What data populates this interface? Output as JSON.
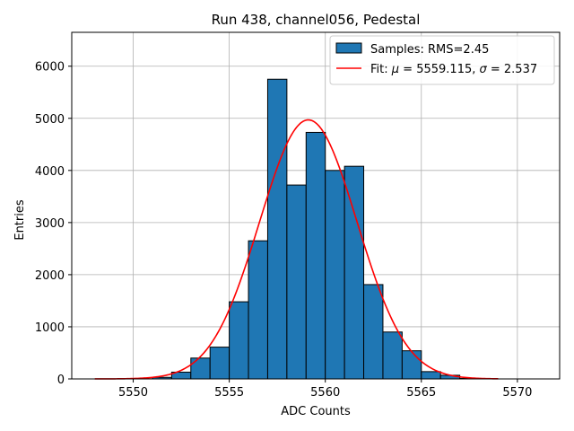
{
  "chart_data": {
    "type": "bar",
    "title": "Run 438, channel056, Pedestal",
    "xlabel": "ADC Counts",
    "ylabel": "Entries",
    "xlim": [
      5546.8,
      5572.2
    ],
    "ylim": [
      0,
      6650
    ],
    "xticks": [
      5550,
      5555,
      5560,
      5565,
      5570
    ],
    "yticks": [
      0,
      1000,
      2000,
      3000,
      4000,
      5000,
      6000
    ],
    "grid": true,
    "legend_position": "top-right",
    "histogram": {
      "name": "Samples: RMS=2.45",
      "color": "#1f77b4",
      "bins": [
        {
          "x0": 5551,
          "x1": 5552,
          "count": 30
        },
        {
          "x0": 5552,
          "x1": 5553,
          "count": 130
        },
        {
          "x0": 5553,
          "x1": 5554,
          "count": 400
        },
        {
          "x0": 5554,
          "x1": 5555,
          "count": 610
        },
        {
          "x0": 5555,
          "x1": 5556,
          "count": 1480
        },
        {
          "x0": 5556,
          "x1": 5557,
          "count": 2650
        },
        {
          "x0": 5557,
          "x1": 5558,
          "count": 5750
        },
        {
          "x0": 5558,
          "x1": 5559,
          "count": 3720
        },
        {
          "x0": 5559,
          "x1": 5560,
          "count": 4730
        },
        {
          "x0": 5560,
          "x1": 5561,
          "count": 4000
        },
        {
          "x0": 5561,
          "x1": 5562,
          "count": 4080
        },
        {
          "x0": 5562,
          "x1": 5563,
          "count": 1810
        },
        {
          "x0": 5563,
          "x1": 5564,
          "count": 900
        },
        {
          "x0": 5564,
          "x1": 5565,
          "count": 540
        },
        {
          "x0": 5565,
          "x1": 5566,
          "count": 140
        },
        {
          "x0": 5566,
          "x1": 5567,
          "count": 70
        },
        {
          "x0": 5567,
          "x1": 5568,
          "count": 10
        }
      ]
    },
    "fit": {
      "name": "Fit: μ = 5559.115, σ = 2.537",
      "name_parts": {
        "prefix": "Fit: ",
        "mu_symbol": "μ",
        "mu_text": " = 5559.115, ",
        "sigma_symbol": "σ",
        "sigma_text": " = 2.537"
      },
      "color": "#ff0000",
      "type": "gaussian",
      "mu": 5559.115,
      "sigma": 2.537,
      "amplitude": 4970,
      "x_range": [
        5548,
        5569
      ]
    }
  }
}
